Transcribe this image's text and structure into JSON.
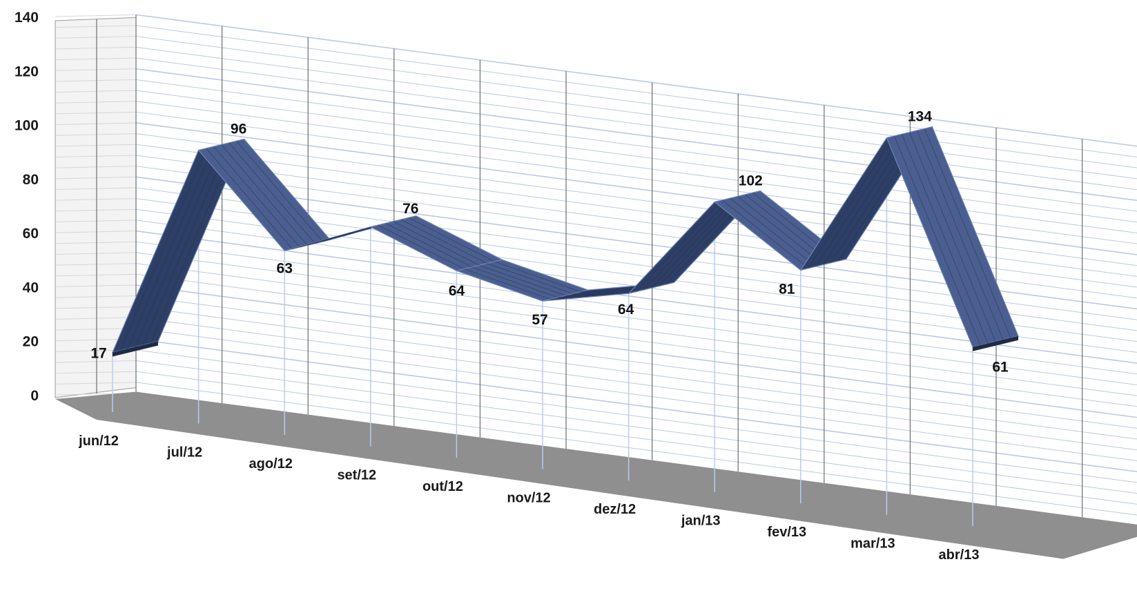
{
  "chart_data": {
    "type": "line",
    "style": "3d-ribbon",
    "title": "",
    "xlabel": "",
    "ylabel": "",
    "ylim": [
      0,
      140
    ],
    "yticks": [
      0,
      20,
      40,
      60,
      80,
      100,
      120,
      140
    ],
    "categories": [
      "jun/12",
      "jul/12",
      "ago/12",
      "set/12",
      "out/12",
      "nov/12",
      "dez/12",
      "jan/13",
      "fev/13",
      "mar/13",
      "abr/13"
    ],
    "series": [
      {
        "values": [
          17,
          96,
          63,
          76,
          64,
          57,
          64,
          102,
          81,
          134,
          61
        ]
      }
    ],
    "data_labels": [
      "17",
      "96",
      "63",
      "76",
      "64",
      "57",
      "64",
      "102",
      "81",
      "134",
      "61"
    ],
    "grid": true,
    "legend": "none",
    "colors": {
      "ribbon_front": "#2e3f66",
      "ribbon_top": "#4a5f8f",
      "ribbon_edge": "#6d84b8",
      "grid_line": "#b9c9e6",
      "column_line": "#6e6e6e",
      "floor": "#8f8f8f",
      "drop_line": "#b9ccee"
    }
  }
}
